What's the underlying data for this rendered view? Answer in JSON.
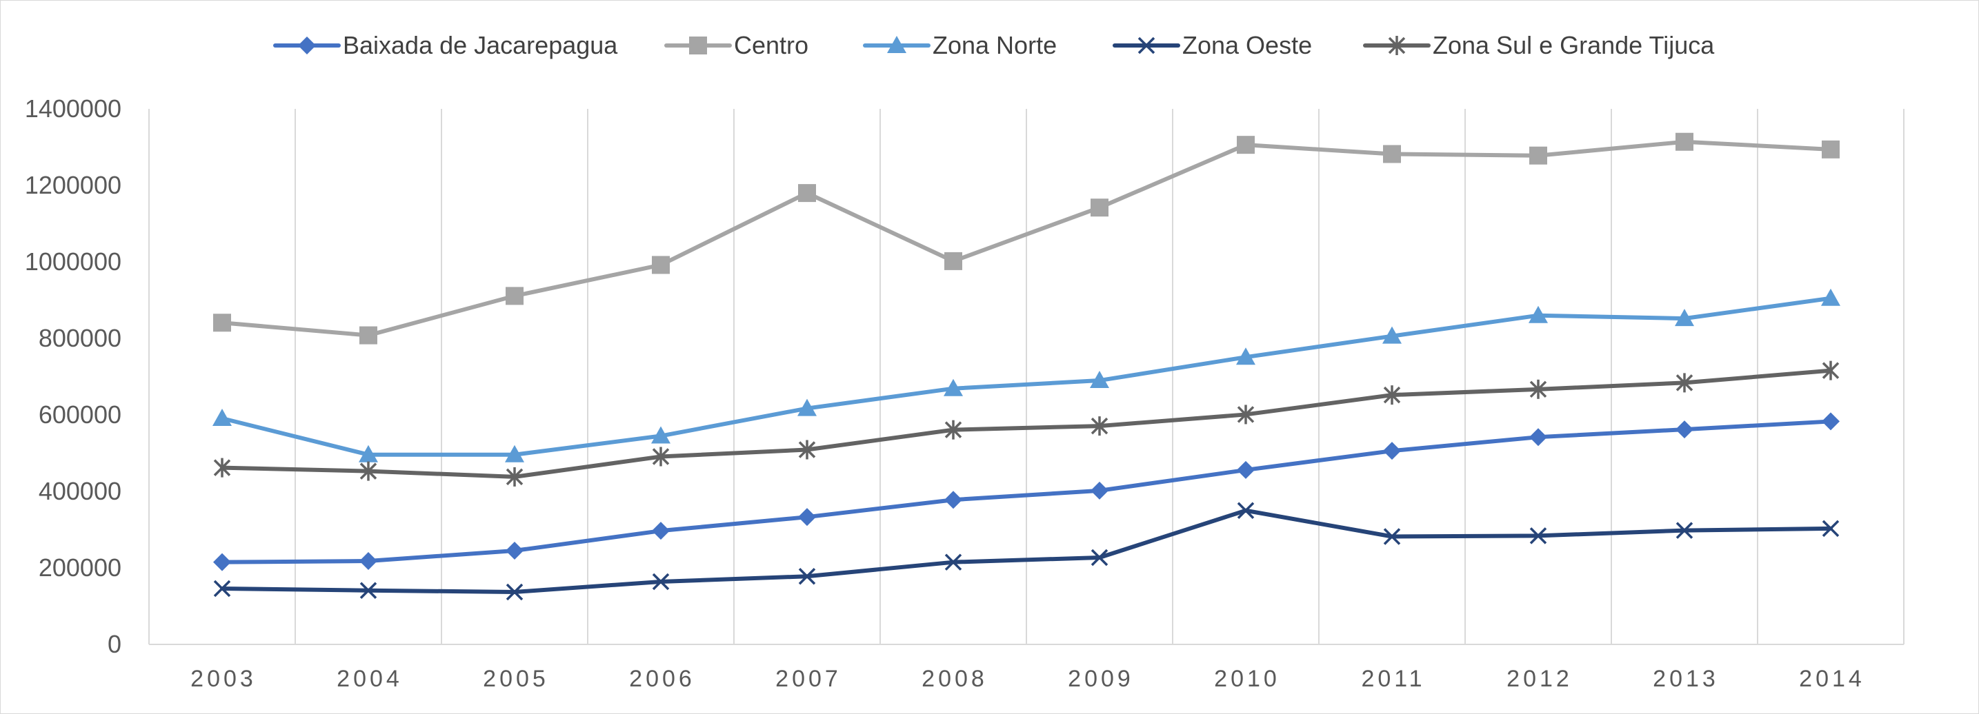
{
  "chart_data": {
    "type": "line",
    "title": "",
    "xlabel": "",
    "ylabel": "",
    "x": [
      "2003",
      "2004",
      "2005",
      "2006",
      "2007",
      "2008",
      "2009",
      "2010",
      "2011",
      "2012",
      "2013",
      "2014"
    ],
    "ylim": [
      0,
      1400000
    ],
    "yticks": [
      "0",
      "200000",
      "400000",
      "600000",
      "800000",
      "1000000",
      "1200000",
      "1400000"
    ],
    "grid": "vertical",
    "legend_position": "top",
    "series": [
      {
        "name": "Baixada de Jacarepagua",
        "color": "#4472c4",
        "marker": "diamond",
        "values": [
          215000,
          218000,
          245000,
          297000,
          333000,
          378000,
          402000,
          456000,
          506000,
          542000,
          562000,
          583000
        ]
      },
      {
        "name": "Centro",
        "color": "#a5a5a5",
        "marker": "square",
        "values": [
          841000,
          808000,
          911000,
          992000,
          1180000,
          1002000,
          1142000,
          1306000,
          1282000,
          1278000,
          1314000,
          1294000
        ]
      },
      {
        "name": "Zona Norte",
        "color": "#5b9bd5",
        "marker": "triangle",
        "values": [
          591000,
          496000,
          496000,
          545000,
          617000,
          669000,
          690000,
          751000,
          806000,
          860000,
          852000,
          905000
        ]
      },
      {
        "name": "Zona Oeste",
        "color": "#264478",
        "marker": "x",
        "values": [
          146000,
          141000,
          137000,
          164000,
          178000,
          215000,
          227000,
          350000,
          282000,
          284000,
          298000,
          303000
        ]
      },
      {
        "name": "Zona Sul e Grande Tijuca",
        "color": "#636363",
        "marker": "star",
        "values": [
          462000,
          453000,
          438000,
          491000,
          509000,
          561000,
          571000,
          601000,
          652000,
          667000,
          684000,
          716000
        ]
      }
    ]
  }
}
